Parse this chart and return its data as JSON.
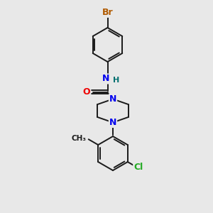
{
  "background_color": "#e8e8e8",
  "bond_color": "#1a1a1a",
  "bond_width": 1.4,
  "atom_colors": {
    "Br": "#b05a00",
    "N": "#0000ee",
    "O": "#ee0000",
    "Cl": "#22aa22",
    "H": "#007070",
    "C": "#1a1a1a"
  },
  "font_size": 8.5,
  "fig_width": 3.0,
  "fig_height": 3.0,
  "xlim": [
    0,
    10
  ],
  "ylim": [
    0,
    10
  ]
}
